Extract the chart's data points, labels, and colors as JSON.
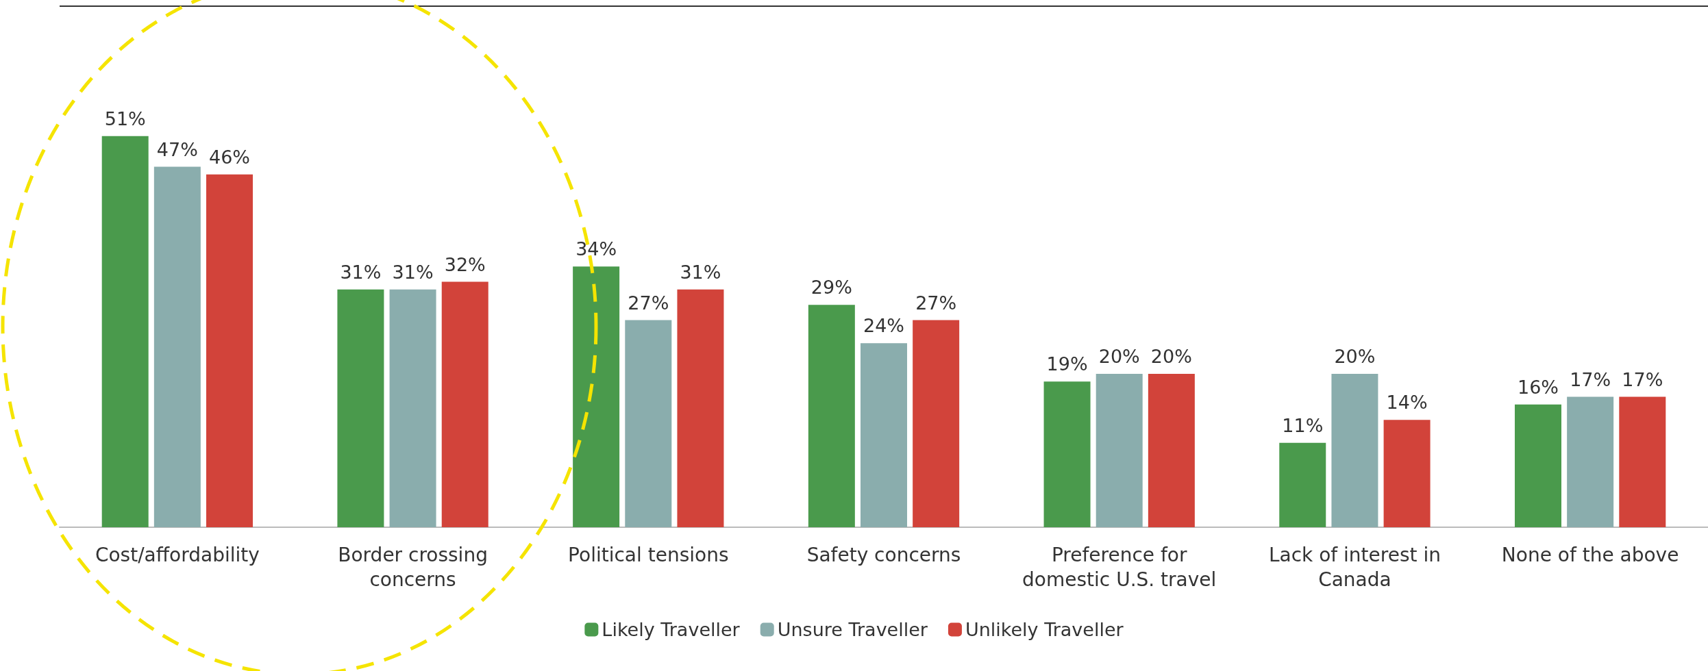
{
  "chart_data": {
    "type": "bar",
    "categories": [
      "Cost/affordability",
      "Border crossing\nconcerns",
      "Political tensions",
      "Safety concerns",
      "Preference for\ndomestic U.S. travel",
      "Lack of interest in\nCanada",
      "None of the above"
    ],
    "series": [
      {
        "name": "Likely Traveller",
        "color": "#4a9a4c",
        "values": [
          51,
          31,
          34,
          29,
          19,
          11,
          16
        ],
        "value_labels": [
          "51%",
          "31%",
          "34%",
          "29%",
          "19%",
          "11%",
          "16%"
        ]
      },
      {
        "name": "Unsure Traveller",
        "color": "#8aadad",
        "values": [
          47,
          31,
          27,
          24,
          20,
          20,
          17
        ],
        "value_labels": [
          "47%",
          "31%",
          "27%",
          "24%",
          "20%",
          "20%",
          "17%"
        ]
      },
      {
        "name": "Unlikely Traveller",
        "color": "#d2433a",
        "values": [
          46,
          32,
          31,
          27,
          20,
          14,
          17
        ],
        "value_labels": [
          "46%",
          "32%",
          "31%",
          "27%",
          "20%",
          "14%",
          "17%"
        ]
      }
    ],
    "legend": "bottom"
  }
}
